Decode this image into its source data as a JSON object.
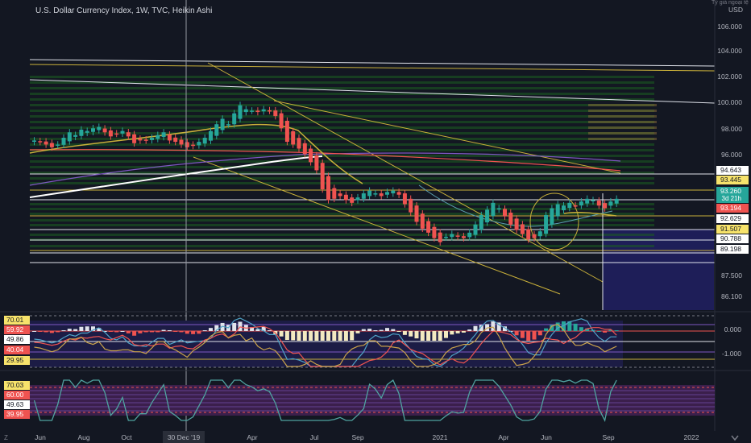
{
  "header": {
    "symbol_title": "U.S. Dollar Currency Index, 1W, TVC, Heikin Ashi",
    "scale_label": "Tỷ giá ngoại tệ",
    "currency": "USD"
  },
  "colors": {
    "background": "#131722",
    "bull": "#26a69a",
    "bear": "#ef5350",
    "gold": "#c9b03a",
    "white": "#e0e3eb",
    "purple": "#7e57c2",
    "shade": "#1e1e58"
  },
  "chart_data": [
    {
      "type": "candlestick",
      "style": "Heikin Ashi",
      "title": "U.S. Dollar Currency Index, 1W, TVC, Heikin Ashi",
      "price_axis_ticks": [
        "106.000",
        "104.000",
        "102.000",
        "100.000",
        "98.000",
        "96.000",
        "87.500",
        "86.100"
      ],
      "time_axis_ticks": [
        "Jun",
        "Aug",
        "Oct",
        "30 Dec '19",
        "Apr",
        "Jul",
        "Sep",
        "2021",
        "Apr",
        "Jun",
        "Sep",
        "2022"
      ],
      "price_labels": [
        {
          "value": "94.643",
          "kind": "white"
        },
        {
          "value": "93.445",
          "kind": "yellow"
        },
        {
          "value": "93.260",
          "sub": "3d 21h",
          "kind": "teal"
        },
        {
          "value": "93.194",
          "kind": "red"
        },
        {
          "value": "92.629",
          "kind": "white"
        },
        {
          "value": "91.507",
          "kind": "yellow"
        },
        {
          "value": "90.788",
          "kind": "white"
        },
        {
          "value": "89.198",
          "kind": "white"
        }
      ],
      "close_series": [
        97.6,
        97.5,
        97.3,
        97.1,
        97.3,
        97.8,
        98.2,
        98.0,
        98.4,
        98.3,
        98.5,
        98.6,
        98.2,
        97.9,
        98.1,
        98.3,
        97.9,
        97.4,
        97.6,
        97.6,
        97.8,
        98.0,
        98.2,
        97.6,
        97.5,
        97.3,
        97.1,
        97.2,
        97.5,
        97.8,
        98.3,
        98.8,
        99.2,
        98.8,
        99.6,
        100.2,
        99.9,
        99.8,
        99.7,
        99.9,
        99.8,
        99.4,
        98.5,
        97.5,
        97.3,
        97.0,
        96.6,
        96.0,
        95.4,
        94.0,
        93.2,
        93.3,
        93.5,
        93.2,
        93.0,
        93.4,
        93.7,
        93.9,
        93.7,
        93.5,
        93.8,
        93.9,
        93.6,
        92.9,
        92.3,
        91.6,
        91.1,
        90.8,
        90.4,
        90.1,
        90.5,
        90.7,
        90.5,
        90.4,
        90.8,
        91.4,
        92.1,
        92.5,
        93.0,
        92.6,
        92.0,
        91.4,
        91.0,
        90.7,
        90.3,
        90.4,
        90.9,
        92.1,
        92.6,
        92.9,
        92.8,
        93.0,
        92.8,
        93.1,
        93.3,
        93.2,
        92.8,
        92.6,
        93.1,
        93.3
      ],
      "overlays": [
        "support/resistance zones",
        "trendlines",
        "moving averages"
      ]
    },
    {
      "type": "histogram",
      "indicator": "momentum oscillator",
      "left_labels": [
        "70.01",
        "59.92",
        "49.86",
        "40.04",
        "29.95"
      ],
      "right_ticks": [
        "0.000",
        "-1.000"
      ]
    },
    {
      "type": "line",
      "indicator": "stochastic oscillator",
      "left_labels": [
        "70.03",
        "60.00",
        "49.63",
        "39.95"
      ]
    }
  ],
  "footer_icons": [
    "log-scale-icon"
  ],
  "corner_labels": [
    "Z"
  ]
}
